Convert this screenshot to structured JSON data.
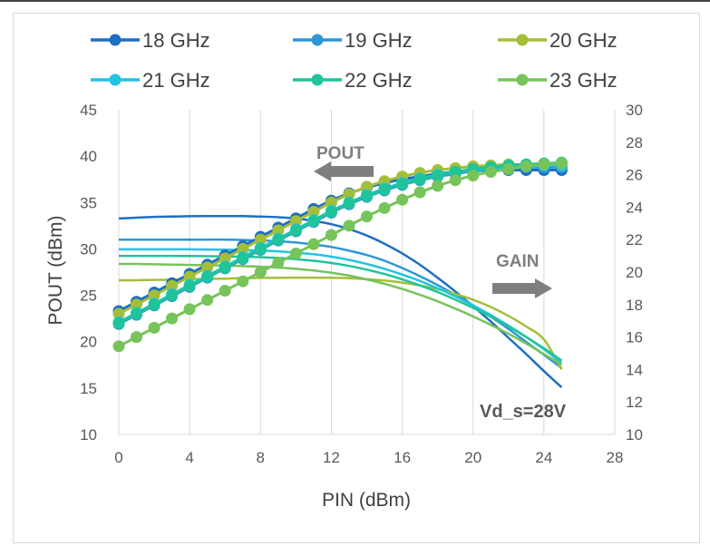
{
  "chart_data": {
    "type": "line",
    "title": "",
    "xlabel": "PIN (dBm)",
    "ylabel": "POUT (dBm)",
    "y2label": "",
    "xlim": [
      0,
      28
    ],
    "ylim": [
      10,
      45
    ],
    "y2lim": [
      10,
      30
    ],
    "xticks": [
      "0",
      "4",
      "8",
      "12",
      "16",
      "20",
      "24",
      "28"
    ],
    "yticks": [
      "10",
      "15",
      "20",
      "25",
      "30",
      "35",
      "40",
      "45"
    ],
    "y2ticks": [
      "10",
      "12",
      "14",
      "16",
      "18",
      "20",
      "22",
      "24",
      "26",
      "28",
      "30"
    ],
    "grid": "vertical",
    "legend_position": "top",
    "pin": [
      0,
      1,
      2,
      3,
      4,
      5,
      6,
      7,
      8,
      9,
      10,
      11,
      12,
      13,
      14,
      15,
      16,
      17,
      18,
      19,
      20,
      21,
      22,
      23,
      24,
      25
    ],
    "series": [
      {
        "name": "18 GHz",
        "color": "#1f6fc4",
        "pout": [
          23.3,
          24.3,
          25.3,
          26.3,
          27.3,
          28.3,
          29.3,
          30.3,
          31.3,
          32.3,
          33.3,
          34.3,
          35.2,
          36.0,
          36.6,
          37.1,
          37.5,
          37.8,
          38.1,
          38.3,
          38.4,
          38.5,
          38.5,
          38.5,
          38.5,
          38.5
        ],
        "gain": [
          23.3,
          23.35,
          23.4,
          23.42,
          23.44,
          23.45,
          23.45,
          23.45,
          23.42,
          23.38,
          23.3,
          23.15,
          22.95,
          22.65,
          22.25,
          21.75,
          21.15,
          20.45,
          19.65,
          18.8,
          17.9,
          16.95,
          15.95,
          14.95,
          13.9,
          12.9
        ]
      },
      {
        "name": "19 GHz",
        "color": "#2e97d6",
        "pout": [
          21.9,
          22.9,
          23.9,
          24.9,
          25.9,
          26.9,
          27.9,
          28.9,
          29.9,
          30.9,
          31.9,
          32.9,
          33.9,
          34.8,
          35.6,
          36.3,
          36.9,
          37.4,
          37.8,
          38.1,
          38.4,
          38.6,
          38.7,
          38.8,
          38.8,
          38.8
        ],
        "gain": [
          22.0,
          22.0,
          22.0,
          22.0,
          22.0,
          22.0,
          22.0,
          21.98,
          21.95,
          21.9,
          21.82,
          21.7,
          21.55,
          21.32,
          21.05,
          20.7,
          20.25,
          19.75,
          19.2,
          18.6,
          17.95,
          17.25,
          16.5,
          15.7,
          14.9,
          14.1
        ]
      },
      {
        "name": "20 GHz",
        "color": "#a3bf3a",
        "pout": [
          23.0,
          24.0,
          25.0,
          26.0,
          27.0,
          28.0,
          29.0,
          30.0,
          31.0,
          32.0,
          33.0,
          34.0,
          35.0,
          35.9,
          36.7,
          37.3,
          37.8,
          38.2,
          38.5,
          38.7,
          38.9,
          39.0,
          39.1,
          39.1,
          39.2,
          39.2
        ],
        "gain": [
          19.5,
          19.5,
          19.52,
          19.54,
          19.56,
          19.58,
          19.6,
          19.62,
          19.64,
          19.65,
          19.66,
          19.66,
          19.65,
          19.62,
          19.56,
          19.48,
          19.35,
          19.18,
          18.95,
          18.65,
          18.3,
          17.85,
          17.3,
          16.65,
          15.85,
          14.0
        ]
      },
      {
        "name": "21 GHz",
        "color": "#22c4e0",
        "pout": [
          22.1,
          23.1,
          24.1,
          25.1,
          26.1,
          27.1,
          28.1,
          29.1,
          30.1,
          31.1,
          32.1,
          33.1,
          34.1,
          35.0,
          35.8,
          36.5,
          37.1,
          37.6,
          38.0,
          38.3,
          38.5,
          38.7,
          38.8,
          38.9,
          39.0,
          39.0
        ],
        "gain": [
          21.4,
          21.4,
          21.4,
          21.4,
          21.4,
          21.39,
          21.38,
          21.36,
          21.33,
          21.28,
          21.2,
          21.1,
          20.95,
          20.75,
          20.5,
          20.2,
          19.85,
          19.45,
          19.0,
          18.5,
          17.95,
          17.35,
          16.7,
          16.0,
          15.25,
          14.4
        ]
      },
      {
        "name": "22 GHz",
        "color": "#1fc49a",
        "pout": [
          22.0,
          23.0,
          24.0,
          25.0,
          26.0,
          27.0,
          28.0,
          29.0,
          30.0,
          31.0,
          32.0,
          33.0,
          34.0,
          34.9,
          35.7,
          36.4,
          37.0,
          37.5,
          37.9,
          38.3,
          38.6,
          38.8,
          39.0,
          39.1,
          39.2,
          39.3
        ],
        "gain": [
          21.0,
          21.0,
          21.0,
          21.0,
          20.99,
          20.98,
          20.97,
          20.95,
          20.92,
          20.87,
          20.8,
          20.7,
          20.56,
          20.38,
          20.15,
          19.88,
          19.55,
          19.18,
          18.77,
          18.3,
          17.8,
          17.25,
          16.65,
          16.0,
          15.3,
          14.55
        ]
      },
      {
        "name": "23 GHz",
        "color": "#76c45a",
        "pout": [
          19.5,
          20.5,
          21.5,
          22.5,
          23.5,
          24.5,
          25.5,
          26.5,
          27.5,
          28.5,
          29.5,
          30.5,
          31.5,
          32.5,
          33.5,
          34.4,
          35.3,
          36.1,
          36.8,
          37.4,
          37.9,
          38.3,
          38.6,
          38.9,
          39.1,
          39.2
        ],
        "gain": [
          20.5,
          20.5,
          20.48,
          20.46,
          20.44,
          20.42,
          20.4,
          20.37,
          20.33,
          20.28,
          20.2,
          20.1,
          19.96,
          19.78,
          19.55,
          19.28,
          18.96,
          18.6,
          18.2,
          17.75,
          17.27,
          16.75,
          16.2,
          15.6,
          14.95,
          14.3
        ]
      }
    ],
    "annotations": [
      {
        "text": "POUT",
        "arrow": "left"
      },
      {
        "text": "GAIN",
        "arrow": "right"
      },
      {
        "text": "Vd_s=28V"
      }
    ]
  }
}
